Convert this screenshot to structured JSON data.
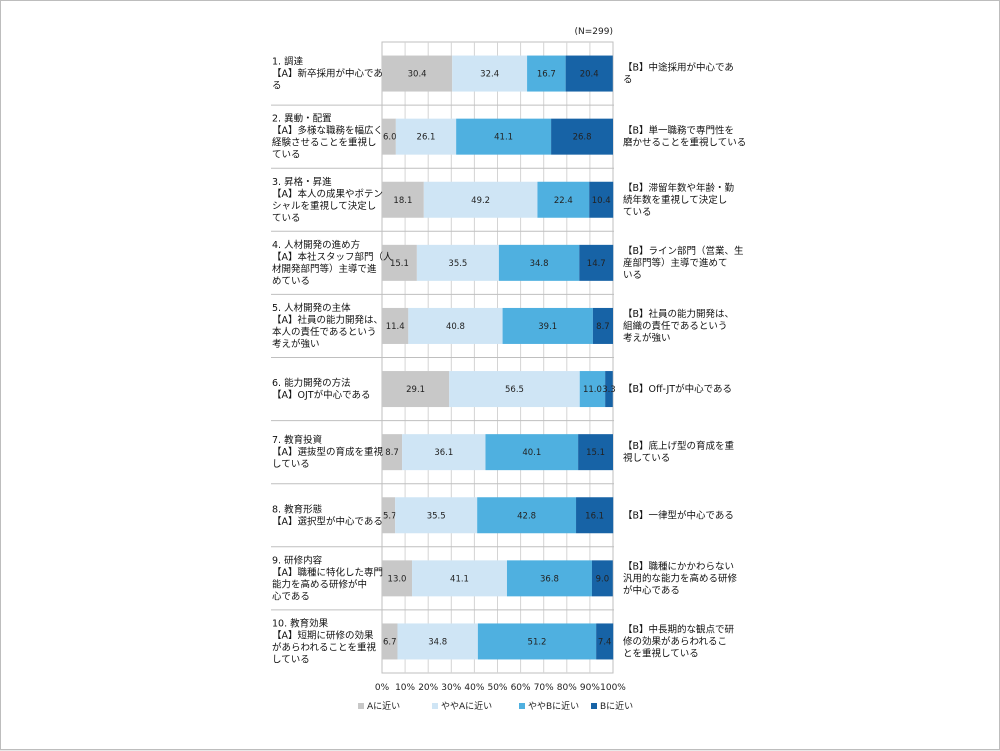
{
  "chart_data": {
    "type": "bar",
    "stacked": true,
    "orientation": "horizontal",
    "percent_stacked": true,
    "n_note": "(N=299)",
    "xlim": [
      0,
      100
    ],
    "grid": true,
    "legend_position": "bottom",
    "tick_labels": [
      "0%",
      "10%",
      "20%",
      "30%",
      "40%",
      "50%",
      "60%",
      "70%",
      "80%",
      "90%",
      "100%"
    ],
    "rows": [
      {
        "left": [
          "1. 調達",
          "【A】新卒採用が中心であ",
          "る"
        ],
        "right": [
          "【B】中途採用が中心であ",
          "る"
        ]
      },
      {
        "left": [
          "2. 異動・配置",
          "【A】多様な職務を幅広く",
          "経験させることを重視し",
          "ている"
        ],
        "right": [
          "【B】単一職務で専門性を",
          "磨かせることを重視している"
        ]
      },
      {
        "left": [
          "3. 昇格・昇進",
          "【A】本人の成果やポテン",
          "シャルを重視して決定し",
          "ている"
        ],
        "right": [
          "【B】滞留年数や年齢・勤",
          "続年数を重視して決定し",
          "ている"
        ]
      },
      {
        "left": [
          "4. 人材開発の進め方",
          "【A】本社スタッフ部門（人",
          "材開発部門等）主導で進",
          "めている"
        ],
        "right": [
          "【B】ライン部門（営業、生",
          "産部門等）主導で進めて",
          "いる"
        ]
      },
      {
        "left": [
          "5. 人材開発の主体",
          "【A】社員の能力開発は、",
          "本人の責任であるという",
          "考えが強い"
        ],
        "right": [
          "【B】社員の能力開発は、",
          "組織の責任であるという",
          "考えが強い"
        ]
      },
      {
        "left": [
          "6. 能力開発の方法",
          "【A】OJTが中心である"
        ],
        "right": [
          "【B】Off-JTが中心である"
        ]
      },
      {
        "left": [
          "7. 教育投資",
          "【A】選抜型の育成を重視",
          "している"
        ],
        "right": [
          "【B】底上げ型の育成を重",
          "視している"
        ]
      },
      {
        "left": [
          "8. 教育形態",
          "【A】選択型が中心である"
        ],
        "right": [
          "【B】一律型が中心である"
        ]
      },
      {
        "left": [
          "9. 研修内容",
          "【A】職種に特化した専門",
          "能力を高める研修が中",
          "心である"
        ],
        "right": [
          "【B】職種にかかわらない",
          "汎用的な能力を高める研修",
          "が中心である"
        ]
      },
      {
        "left": [
          "10. 教育効果",
          "【A】短期に研修の効果",
          "があらわれることを重視",
          "している"
        ],
        "right": [
          "【B】中長期的な観点で研",
          "修の効果があらわれるこ",
          "とを重視している"
        ]
      }
    ],
    "series": [
      {
        "name": "Aに近い",
        "color": "#c8c8c8",
        "values": [
          30.4,
          6.0,
          18.1,
          15.1,
          11.4,
          29.1,
          8.7,
          5.7,
          13.0,
          6.7
        ],
        "labels": [
          "30.4",
          "6.0",
          "18.1",
          "15.1",
          "11.4",
          "29.1",
          "8.7",
          "5.7",
          "13.0",
          "6.7"
        ]
      },
      {
        "name": "ややAに近い",
        "color": "#cfe5f5",
        "values": [
          32.4,
          26.1,
          49.2,
          35.5,
          40.8,
          56.5,
          36.1,
          35.5,
          41.1,
          34.8
        ],
        "labels": [
          "32.4",
          "26.1",
          "49.2",
          "35.5",
          "40.8",
          "56.5",
          "36.1",
          "35.5",
          "41.1",
          "34.8"
        ]
      },
      {
        "name": "ややBに近い",
        "color": "#4fb0e0",
        "values": [
          16.7,
          41.1,
          22.4,
          34.8,
          39.1,
          11.0,
          40.1,
          42.8,
          36.8,
          51.2
        ],
        "labels": [
          "16.7",
          "41.1",
          "22.4",
          "34.8",
          "39.1",
          "11.0",
          "40.1",
          "42.8",
          "36.8",
          "51.2"
        ]
      },
      {
        "name": "Bに近い",
        "color": "#1763a6",
        "values": [
          20.4,
          26.8,
          10.4,
          14.7,
          8.7,
          3.3,
          15.1,
          16.1,
          9.0,
          7.4
        ],
        "labels": [
          "20.4",
          "26.8",
          "10.4",
          "14.7",
          "8.7",
          "3.3",
          "15.1",
          "16.1",
          "9.0",
          "7.4"
        ]
      }
    ]
  }
}
